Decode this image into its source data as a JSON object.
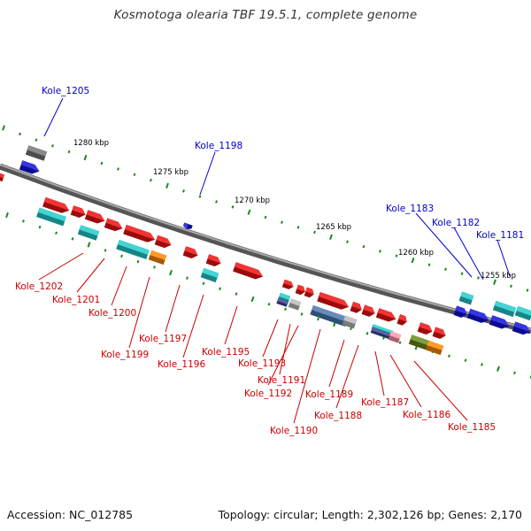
{
  "title": "Kosmotoga olearia TBF 19.5.1, complete genome",
  "footer": {
    "accession": "Accession: NC_012785",
    "summary": "Topology: circular; Length: 2,302,126 bp; Genes: 2,170"
  },
  "colors": {
    "backbone": "#777777",
    "tick": "#1a8a1a",
    "plus_label": "#0000cc",
    "minus_label": "#cc0000",
    "red": "#ee1111",
    "cyan": "#22cccc",
    "blue": "#1111dd",
    "gray": "#777777",
    "orange": "#ff8800",
    "steel": "#4a78b0",
    "olive": "#6a8a1a",
    "pink": "#ff99aa",
    "indigo": "#44449a",
    "silver": "#bbbbbb"
  },
  "scale_labels": [
    "1280 kbp",
    "1275 kbp",
    "1270 kbp",
    "1265 kbp",
    "1260 kbp",
    "1255 kbp"
  ],
  "plus_labels": [
    "Kole_1205",
    "Kole_1198",
    "Kole_1183",
    "Kole_1182",
    "Kole_1181"
  ],
  "minus_labels": [
    "Kole_1202",
    "Kole_1201",
    "Kole_1200",
    "Kole_1199",
    "Kole_1197",
    "Kole_1196",
    "Kole_1195",
    "Kole_1193",
    "Kole_1191",
    "Kole_1192",
    "Kole_1190",
    "Kole_1189",
    "Kole_1188",
    "Kole_1187",
    "Kole_1186",
    "Kole_1185"
  ]
}
